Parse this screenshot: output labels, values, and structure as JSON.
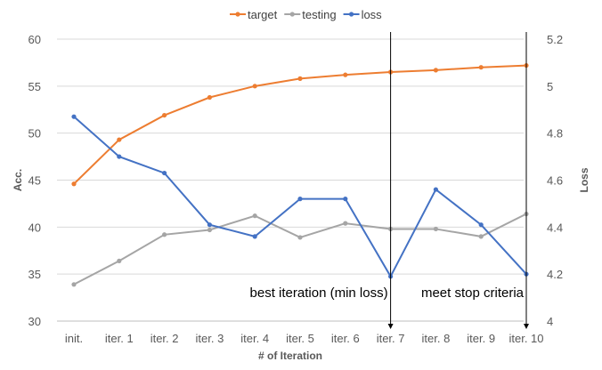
{
  "chart_data": {
    "type": "line",
    "categories": [
      "init.",
      "iter. 1",
      "iter. 2",
      "iter. 3",
      "iter. 4",
      "iter. 5",
      "iter. 6",
      "iter. 7",
      "iter. 8",
      "iter. 9",
      "iter. 10"
    ],
    "series": [
      {
        "name": "target",
        "axis": "left",
        "color": "#ED7D31",
        "values": [
          44.6,
          49.3,
          51.9,
          53.8,
          55.0,
          55.8,
          56.2,
          56.5,
          56.7,
          57.0,
          57.2
        ]
      },
      {
        "name": "testing",
        "axis": "left",
        "color": "#A5A5A5",
        "values": [
          33.9,
          36.4,
          39.2,
          39.7,
          41.2,
          38.9,
          40.4,
          39.8,
          39.8,
          39.0,
          41.4
        ]
      },
      {
        "name": "loss",
        "axis": "right",
        "color": "#4472C4",
        "values": [
          4.87,
          4.7,
          4.63,
          4.41,
          4.36,
          4.52,
          4.52,
          4.19,
          4.56,
          4.41,
          4.2
        ]
      }
    ],
    "xlabel": "# of Iteration",
    "ylabel": "Acc.",
    "y2label": "Loss",
    "ylim": [
      30,
      60
    ],
    "yticks": [
      "30",
      "35",
      "40",
      "45",
      "50",
      "55",
      "60"
    ],
    "y2lim": [
      4,
      5.2
    ],
    "y2ticks": [
      "4",
      "4.2",
      "4.4",
      "4.6",
      "4.8",
      "5",
      "5.2"
    ],
    "grid": true,
    "legend": "top",
    "annotations": [
      {
        "text": "best iteration (min loss)",
        "category": "iter. 7"
      },
      {
        "text": "meet stop criteria",
        "category": "iter. 10"
      }
    ]
  }
}
